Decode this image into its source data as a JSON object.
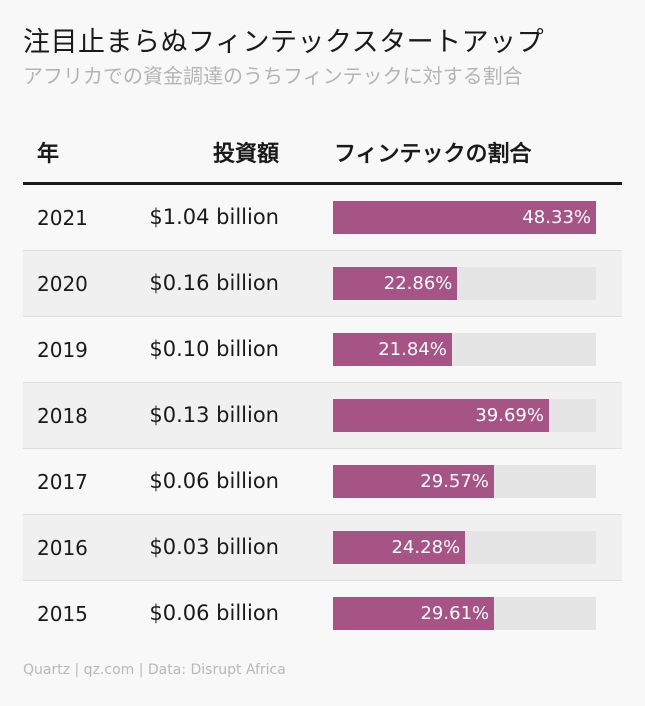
{
  "title": "注目止まらぬフィンテックスタートアップ",
  "subtitle": "アフリカでの資金調達のうちフィンテックに対する割合",
  "columns": {
    "year": "年",
    "amount": "投資額",
    "share": "フィンテックの割合"
  },
  "colors": {
    "bar": "#a65386",
    "track": "#e5e5e5"
  },
  "chart_data": {
    "type": "table",
    "title": "注目止まらぬフィンテックスタートアップ",
    "subtitle": "アフリカでの資金調達のうちフィンテックに対する割合",
    "columns": [
      "年",
      "投資額",
      "フィンテックの割合"
    ],
    "bar_max": 48.33,
    "rows": [
      {
        "year": "2021",
        "amount": "$1.04 billion",
        "share": 48.33,
        "share_label": "48.33%"
      },
      {
        "year": "2020",
        "amount": "$0.16 billion",
        "share": 22.86,
        "share_label": "22.86%"
      },
      {
        "year": "2019",
        "amount": "$0.10 billion",
        "share": 21.84,
        "share_label": "21.84%"
      },
      {
        "year": "2018",
        "amount": "$0.13 billion",
        "share": 39.69,
        "share_label": "39.69%"
      },
      {
        "year": "2017",
        "amount": "$0.06 billion",
        "share": 29.57,
        "share_label": "29.57%"
      },
      {
        "year": "2016",
        "amount": "$0.03 billion",
        "share": 24.28,
        "share_label": "24.28%"
      },
      {
        "year": "2015",
        "amount": "$0.06 billion",
        "share": 29.61,
        "share_label": "29.61%"
      }
    ]
  },
  "footer": "Quartz | qz.com | Data: Disrupt Africa"
}
